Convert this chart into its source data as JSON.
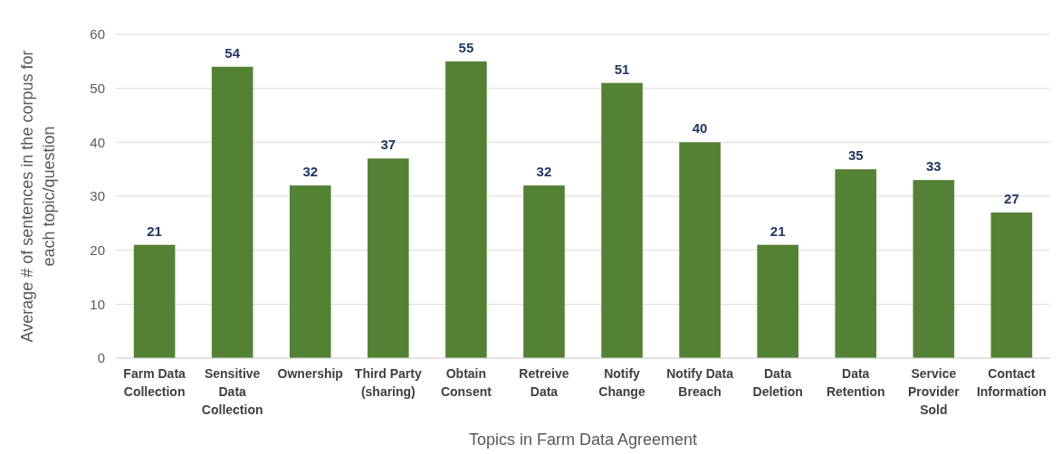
{
  "chart_data": {
    "type": "bar",
    "xlabel": "Topics in Farm Data Agreement",
    "ylabel": "Average # of sentences in the corpus for each topic/question",
    "categories": [
      "Farm Data Collection",
      "Sensitive Data Collection",
      "Ownership",
      "Third Party (sharing)",
      "Obtain Consent",
      "Retreive Data",
      "Notify Change",
      "Notify Data Breach",
      "Data Deletion",
      "Data Retention",
      "Service Provider Sold",
      "Contact Information"
    ],
    "values": [
      21,
      54,
      32,
      37,
      55,
      32,
      51,
      40,
      21,
      35,
      33,
      27
    ],
    "color": "#548235",
    "ylim": [
      0,
      60
    ],
    "yticks": [
      0,
      10,
      20,
      30,
      40,
      50,
      60
    ],
    "grid": "y",
    "data_labels": true
  }
}
